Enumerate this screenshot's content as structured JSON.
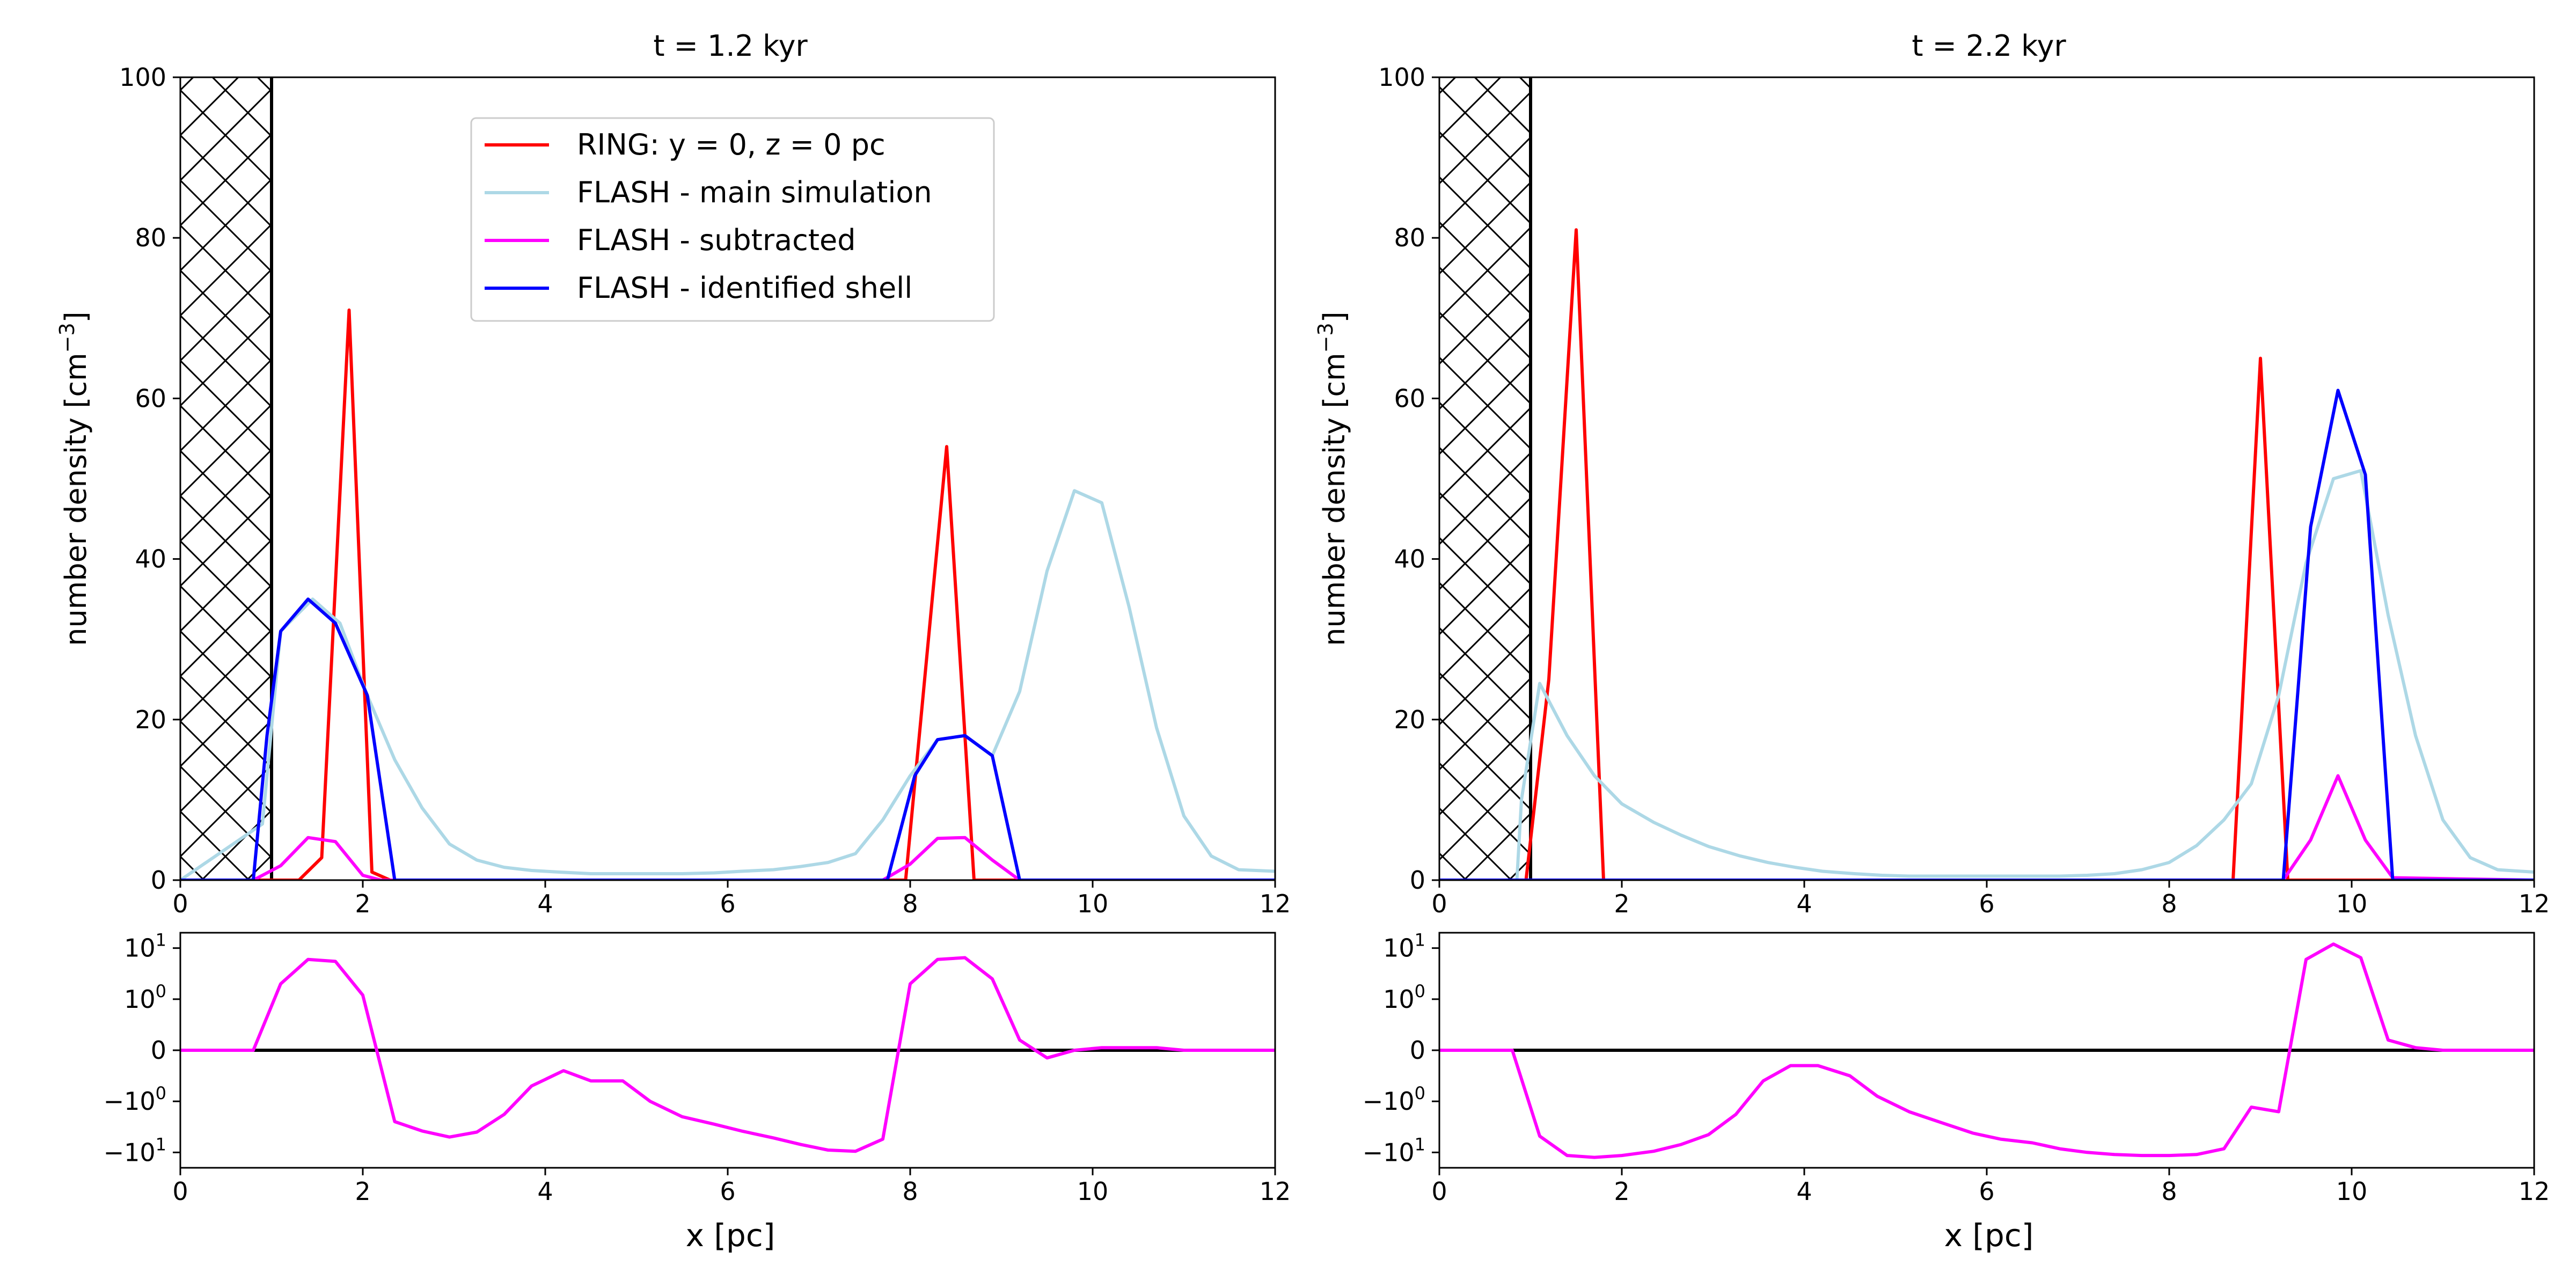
{
  "chart_data": [
    {
      "type": "line",
      "title": "t = 1.2 kyr",
      "xlabel": "",
      "ylabel": "number density [cm",
      "ylabel_superscript": "−3",
      "ylabel_suffix": "]",
      "xlim": [
        0,
        12
      ],
      "ylim": [
        0,
        100
      ],
      "xticks": [
        "0",
        "2",
        "4",
        "6",
        "8",
        "10",
        "12"
      ],
      "yticks": [
        "0",
        "20",
        "40",
        "60",
        "80",
        "100"
      ],
      "hatched_region_x": [
        0,
        1
      ],
      "series": [
        {
          "name": "RING: y = 0, z = 0 pc",
          "color": "#ff0000",
          "x": [
            0,
            1.3,
            1.55,
            1.85,
            2.1,
            2.3,
            7.95,
            8.4,
            8.7,
            12
          ],
          "y": [
            0,
            0,
            2.8,
            71,
            1,
            0,
            0,
            54,
            0,
            0
          ]
        },
        {
          "name": "FLASH - main simulation",
          "color": "#add8e6",
          "x": [
            0,
            0.9,
            1.1,
            1.45,
            1.75,
            2.05,
            2.35,
            2.65,
            2.95,
            3.25,
            3.55,
            3.85,
            4.15,
            4.5,
            4.85,
            5.15,
            5.5,
            5.85,
            6.15,
            6.5,
            6.8,
            7.1,
            7.4,
            7.7,
            8.0,
            8.3,
            8.6,
            8.9,
            9.2,
            9.5,
            9.8,
            10.1,
            10.4,
            10.7,
            11.0,
            11.3,
            11.6,
            12.0
          ],
          "y": [
            0,
            7,
            31,
            35,
            32,
            23,
            15,
            9,
            4.5,
            2.5,
            1.6,
            1.2,
            1.0,
            0.8,
            0.8,
            0.8,
            0.8,
            0.9,
            1.1,
            1.3,
            1.7,
            2.2,
            3.3,
            7.5,
            13,
            17.5,
            18,
            15.5,
            23.5,
            38.5,
            48.5,
            47,
            34,
            19,
            8,
            3,
            1.3,
            1.1
          ]
        },
        {
          "name": "FLASH - subtracted",
          "color": "#ff00ff",
          "x": [
            0,
            0.8,
            1.1,
            1.4,
            1.7,
            2.0,
            2.2,
            7.7,
            8.0,
            8.3,
            8.6,
            8.9,
            9.2,
            12
          ],
          "y": [
            0,
            0,
            1.8,
            5.3,
            4.8,
            0.6,
            0,
            0,
            2.0,
            5.2,
            5.3,
            2.5,
            0,
            0
          ]
        },
        {
          "name": "FLASH - identified shell",
          "color": "#0000ff",
          "x": [
            0,
            0.8,
            0.95,
            1.1,
            1.4,
            1.7,
            2.05,
            2.35,
            7.6,
            7.75,
            8.05,
            8.3,
            8.6,
            8.9,
            9.2,
            12
          ],
          "y": [
            0,
            0,
            18,
            31,
            35,
            32,
            23,
            0,
            0,
            0,
            13,
            17.5,
            18,
            15.5,
            0,
            0
          ]
        }
      ]
    },
    {
      "type": "line",
      "title": "t = 2.2 kyr",
      "xlabel": "",
      "ylabel": "number density [cm",
      "ylabel_superscript": "−3",
      "ylabel_suffix": "]",
      "xlim": [
        0,
        12
      ],
      "ylim": [
        0,
        100
      ],
      "xticks": [
        "0",
        "2",
        "4",
        "6",
        "8",
        "10",
        "12"
      ],
      "yticks": [
        "0",
        "20",
        "40",
        "60",
        "80",
        "100"
      ],
      "hatched_region_x": [
        0,
        1
      ],
      "series": [
        {
          "name": "RING: y = 0, z = 0 pc",
          "color": "#ff0000",
          "x": [
            0,
            0.95,
            1.2,
            1.5,
            1.8,
            8.7,
            9.0,
            9.3,
            12
          ],
          "y": [
            0,
            0,
            25,
            81,
            0,
            0,
            65,
            0,
            0
          ]
        },
        {
          "name": "FLASH - main simulation",
          "color": "#add8e6",
          "x": [
            0,
            0.85,
            0.9,
            1.1,
            1.4,
            1.7,
            2.0,
            2.35,
            2.65,
            2.95,
            3.3,
            3.6,
            3.9,
            4.2,
            4.55,
            4.85,
            5.15,
            5.5,
            5.85,
            6.15,
            6.45,
            6.8,
            7.1,
            7.4,
            7.7,
            8.0,
            8.3,
            8.6,
            8.9,
            9.2,
            9.5,
            9.8,
            10.1,
            10.4,
            10.7,
            11.0,
            11.3,
            11.6,
            12.0
          ],
          "y": [
            0,
            0,
            10,
            24.5,
            18,
            13,
            9.5,
            7.2,
            5.6,
            4.2,
            3.0,
            2.2,
            1.6,
            1.1,
            0.8,
            0.6,
            0.5,
            0.5,
            0.5,
            0.5,
            0.5,
            0.5,
            0.6,
            0.8,
            1.3,
            2.2,
            4.3,
            7.5,
            12,
            23,
            39.5,
            50,
            51,
            33,
            18,
            7.5,
            2.8,
            1.3,
            1.0
          ]
        },
        {
          "name": "FLASH - subtracted",
          "color": "#ff00ff",
          "x": [
            0,
            9.25,
            9.55,
            9.85,
            10.15,
            10.45,
            12
          ],
          "y": [
            0,
            0,
            5,
            13,
            5,
            0.3,
            0
          ]
        },
        {
          "name": "FLASH - identified shell",
          "color": "#0000ff",
          "x": [
            0,
            9.25,
            9.55,
            9.85,
            10.15,
            10.45,
            12
          ],
          "y": [
            0,
            0,
            44,
            61,
            50.5,
            0,
            0
          ]
        }
      ]
    },
    {
      "type": "line",
      "title": "",
      "xlabel": "x [pc]",
      "ylabel": "",
      "xlim": [
        0,
        12
      ],
      "yscale": "symlog",
      "ylim": [
        -20,
        20
      ],
      "xticks": [
        "0",
        "2",
        "4",
        "6",
        "8",
        "10",
        "12"
      ],
      "yticks": [
        {
          "base": "10",
          "exp": "1"
        },
        {
          "base": "10",
          "exp": "0"
        },
        {
          "base": "0",
          "exp": ""
        },
        {
          "base": "−10",
          "exp": "0"
        },
        {
          "base": "−10",
          "exp": "1"
        }
      ],
      "series": [
        {
          "name": "FLASH - subtracted",
          "color": "#ff00ff",
          "x": [
            0,
            0.8,
            1.1,
            1.4,
            1.7,
            2.0,
            2.35,
            2.65,
            2.95,
            3.25,
            3.55,
            3.85,
            4.2,
            4.5,
            4.85,
            5.15,
            5.5,
            5.85,
            6.15,
            6.5,
            6.8,
            7.1,
            7.4,
            7.7,
            8.0,
            8.3,
            8.6,
            8.9,
            9.2,
            9.5,
            9.8,
            10.1,
            10.4,
            10.7,
            11.0,
            11.3,
            12.0
          ],
          "y": [
            0,
            0,
            2,
            6,
            5.5,
            1.2,
            -2.5,
            -3.8,
            -5,
            -4,
            -1.8,
            -0.7,
            -0.4,
            -0.6,
            -0.6,
            -1.0,
            -2.0,
            -2.8,
            -3.8,
            -5.2,
            -7,
            -9,
            -9.5,
            -5.5,
            2,
            6,
            6.5,
            2.5,
            0.2,
            -0.15,
            0,
            0.05,
            0.05,
            0.05,
            0,
            0,
            0
          ]
        }
      ]
    },
    {
      "type": "line",
      "title": "",
      "xlabel": "x [pc]",
      "ylabel": "",
      "xlim": [
        0,
        12
      ],
      "yscale": "symlog",
      "ylim": [
        -20,
        20
      ],
      "xticks": [
        "0",
        "2",
        "4",
        "6",
        "8",
        "10",
        "12"
      ],
      "yticks": [
        {
          "base": "10",
          "exp": "1"
        },
        {
          "base": "10",
          "exp": "0"
        },
        {
          "base": "0",
          "exp": ""
        },
        {
          "base": "−10",
          "exp": "0"
        },
        {
          "base": "−10",
          "exp": "1"
        }
      ],
      "series": [
        {
          "name": "FLASH - subtracted",
          "color": "#ff00ff",
          "x": [
            0,
            0.8,
            1.1,
            1.4,
            1.7,
            2.0,
            2.35,
            2.65,
            2.95,
            3.25,
            3.55,
            3.85,
            4.15,
            4.5,
            4.8,
            5.15,
            5.5,
            5.85,
            6.15,
            6.5,
            6.8,
            7.1,
            7.4,
            7.7,
            8.0,
            8.3,
            8.6,
            8.9,
            9.2,
            9.5,
            9.8,
            10.1,
            10.4,
            10.7,
            11.0,
            11.3,
            12.0
          ],
          "y": [
            0,
            0,
            -4.8,
            -11.5,
            -12.5,
            -11.5,
            -9.5,
            -7,
            -4.5,
            -1.8,
            -0.6,
            -0.3,
            -0.3,
            -0.5,
            -0.9,
            -1.6,
            -2.6,
            -4.2,
            -5.5,
            -6.5,
            -8.5,
            -10,
            -11,
            -11.5,
            -11.5,
            -11,
            -8.5,
            -1.3,
            -1.6,
            6,
            12,
            6.5,
            0.2,
            0.05,
            0,
            0,
            0
          ]
        }
      ]
    }
  ]
}
